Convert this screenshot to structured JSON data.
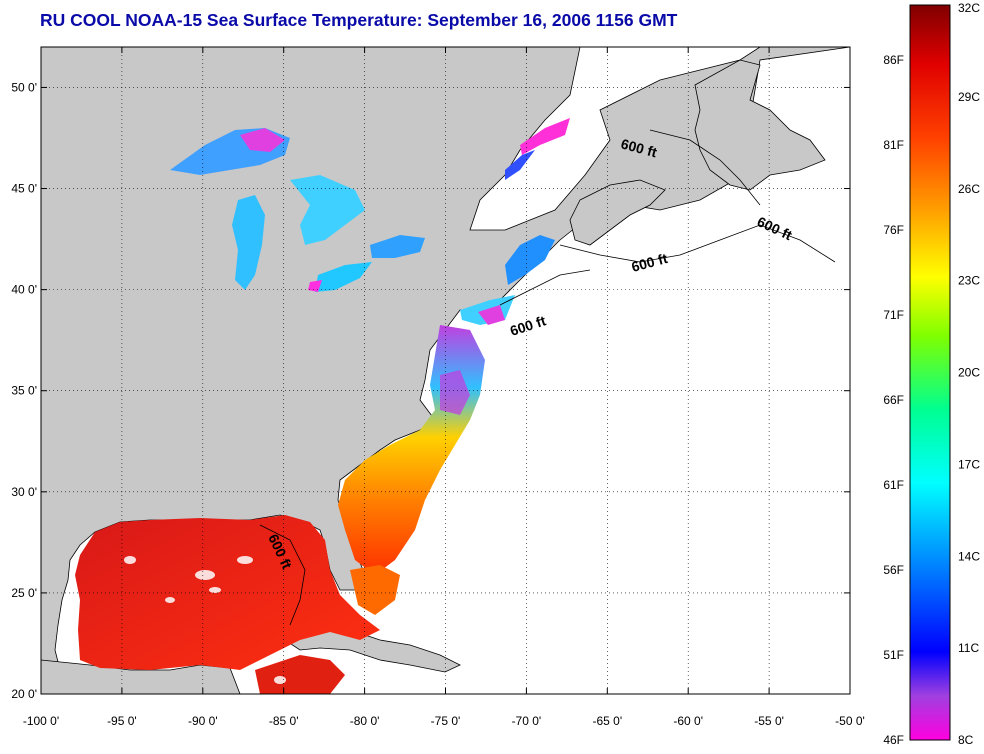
{
  "title": "RU COOL  NOAA-15  Sea Surface Temperature:  September 16, 2006 1156 GMT",
  "map": {
    "lon_range": [
      -100,
      -50
    ],
    "lat_range": [
      20,
      52
    ],
    "lon_labels": [
      "-100 0'",
      "-95 0'",
      "-90 0'",
      "-85 0'",
      "-80 0'",
      "-75 0'",
      "-70 0'",
      "-65 0'",
      "-60 0'",
      "-55 0'",
      "-50 0'"
    ],
    "lat_labels": [
      "20 0'",
      "25 0'",
      "30 0'",
      "35 0'",
      "40 0'",
      "45 0'",
      "50 0'"
    ],
    "grid": "dotted",
    "land_color": "#c8c8c8",
    "ocean_color": "#ffffff",
    "contour_labels": [
      "600 ft",
      "600 ft",
      "600 ft",
      "600 ft",
      "600 ft"
    ]
  },
  "colorbar": {
    "celsius_labels": [
      "32C",
      "29C",
      "26C",
      "23C",
      "20C",
      "17C",
      "14C",
      "11C",
      "8C"
    ],
    "fahrenheit_labels": [
      "86F",
      "81F",
      "76F",
      "71F",
      "66F",
      "61F",
      "56F",
      "51F",
      "46F"
    ],
    "range_c": [
      8,
      32
    ],
    "colors": [
      "#ff00d8",
      "#c040d8",
      "#2020ff",
      "#00a0ff",
      "#00ffff",
      "#00ff80",
      "#c0ff00",
      "#ffff00",
      "#ffa000",
      "#ff4000",
      "#d01010",
      "#800000"
    ]
  }
}
